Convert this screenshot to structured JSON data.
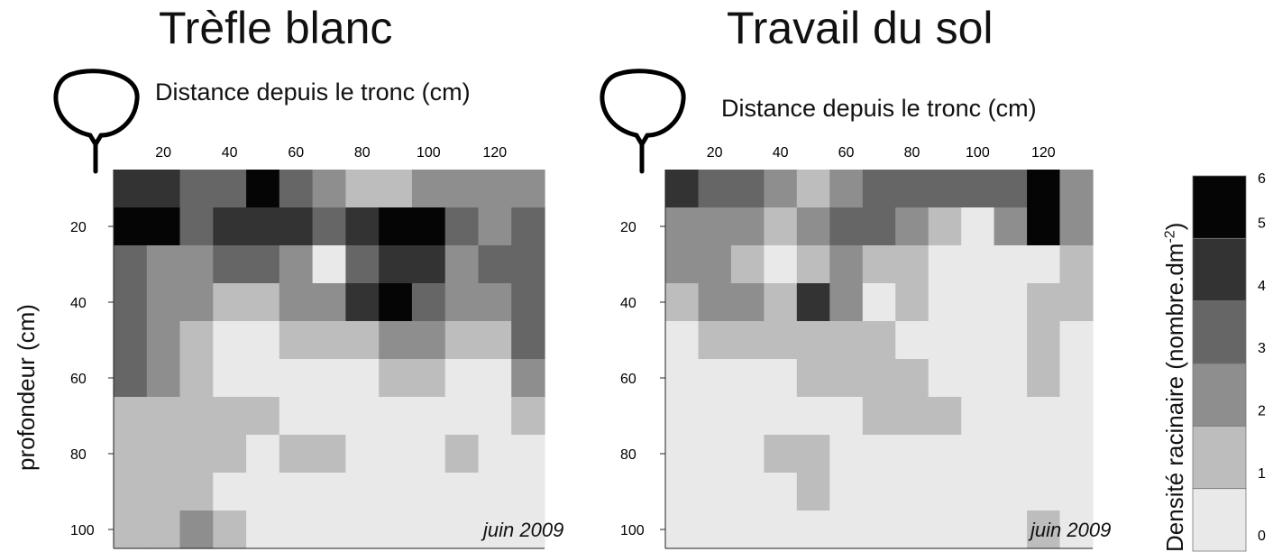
{
  "chart_data": [
    {
      "type": "heatmap",
      "title": "Trèfle blanc",
      "xlabel": "Distance depuis le tronc (cm)",
      "ylabel": "profondeur (cm)",
      "annotation": "juin 2009",
      "x_ticks": [
        20,
        40,
        60,
        80,
        100,
        120
      ],
      "y_ticks": [
        20,
        40,
        60,
        80,
        100
      ],
      "x": [
        10,
        20,
        30,
        40,
        50,
        60,
        70,
        80,
        90,
        100,
        110,
        120,
        130
      ],
      "y": [
        10,
        20,
        30,
        40,
        50,
        60,
        70,
        80,
        90,
        100
      ],
      "values": [
        [
          4,
          4,
          3,
          3,
          5,
          3,
          2,
          1,
          1,
          2,
          2,
          2,
          2
        ],
        [
          6,
          5,
          3,
          4,
          4,
          4,
          3,
          4,
          5,
          5,
          3,
          2,
          3
        ],
        [
          3,
          2,
          2,
          3,
          3,
          2,
          0,
          3,
          4,
          4,
          2,
          3,
          3
        ],
        [
          3,
          2,
          2,
          1,
          1,
          2,
          2,
          4,
          5,
          3,
          2,
          2,
          3
        ],
        [
          3,
          2,
          1,
          0,
          0,
          1,
          1,
          1,
          2,
          2,
          1,
          1,
          3
        ],
        [
          3,
          2,
          1,
          0,
          0,
          0,
          0,
          0,
          1,
          1,
          0,
          0,
          2
        ],
        [
          1,
          1,
          1,
          1,
          1,
          0,
          0,
          0,
          0,
          0,
          0,
          0,
          1
        ],
        [
          1,
          1,
          1,
          1,
          0,
          1,
          1,
          0,
          0,
          0,
          1,
          0,
          0
        ],
        [
          1,
          1,
          1,
          0,
          0,
          0,
          0,
          0,
          0,
          0,
          0,
          0,
          0
        ],
        [
          1,
          1,
          2,
          1,
          0,
          0,
          0,
          0,
          0,
          0,
          0,
          0,
          0
        ]
      ]
    },
    {
      "type": "heatmap",
      "title": "Travail du sol",
      "xlabel": "Distance depuis le tronc (cm)",
      "ylabel": "",
      "annotation": "juin 2009",
      "x_ticks": [
        20,
        40,
        60,
        80,
        100,
        120
      ],
      "y_ticks": [
        20,
        40,
        60,
        80,
        100
      ],
      "x": [
        10,
        20,
        30,
        40,
        50,
        60,
        70,
        80,
        90,
        100,
        110,
        120,
        130
      ],
      "y": [
        10,
        20,
        30,
        40,
        50,
        60,
        70,
        80,
        90,
        100
      ],
      "values": [
        [
          4,
          3,
          3,
          2,
          1,
          2,
          3,
          3,
          3,
          3,
          3,
          5,
          2
        ],
        [
          2,
          2,
          2,
          1,
          2,
          3,
          3,
          2,
          1,
          0,
          2,
          5,
          2
        ],
        [
          2,
          2,
          1,
          0,
          1,
          2,
          1,
          1,
          0,
          0,
          0,
          0,
          1
        ],
        [
          1,
          2,
          2,
          1,
          4,
          2,
          0,
          1,
          0,
          0,
          0,
          1,
          1
        ],
        [
          0,
          1,
          1,
          1,
          1,
          1,
          1,
          0,
          0,
          0,
          0,
          1,
          0
        ],
        [
          0,
          0,
          0,
          0,
          1,
          1,
          1,
          1,
          0,
          0,
          0,
          1,
          0
        ],
        [
          0,
          0,
          0,
          0,
          0,
          0,
          1,
          1,
          1,
          0,
          0,
          0,
          0
        ],
        [
          0,
          0,
          0,
          1,
          1,
          0,
          0,
          0,
          0,
          0,
          0,
          0,
          0
        ],
        [
          0,
          0,
          0,
          0,
          1,
          0,
          0,
          0,
          0,
          0,
          0,
          0,
          0
        ],
        [
          0,
          0,
          0,
          0,
          0,
          0,
          0,
          0,
          0,
          0,
          0,
          1,
          0
        ]
      ]
    }
  ],
  "colorbar": {
    "label": "Densité racinaire (nombre.dm",
    "label_sup": "-2",
    "label_end": ")",
    "levels": [
      0,
      1,
      2,
      3,
      4,
      5,
      6
    ],
    "colors": [
      "#e9e9e9",
      "#bdbdbd",
      "#8e8e8e",
      "#666666",
      "#333333",
      "#050505"
    ]
  }
}
